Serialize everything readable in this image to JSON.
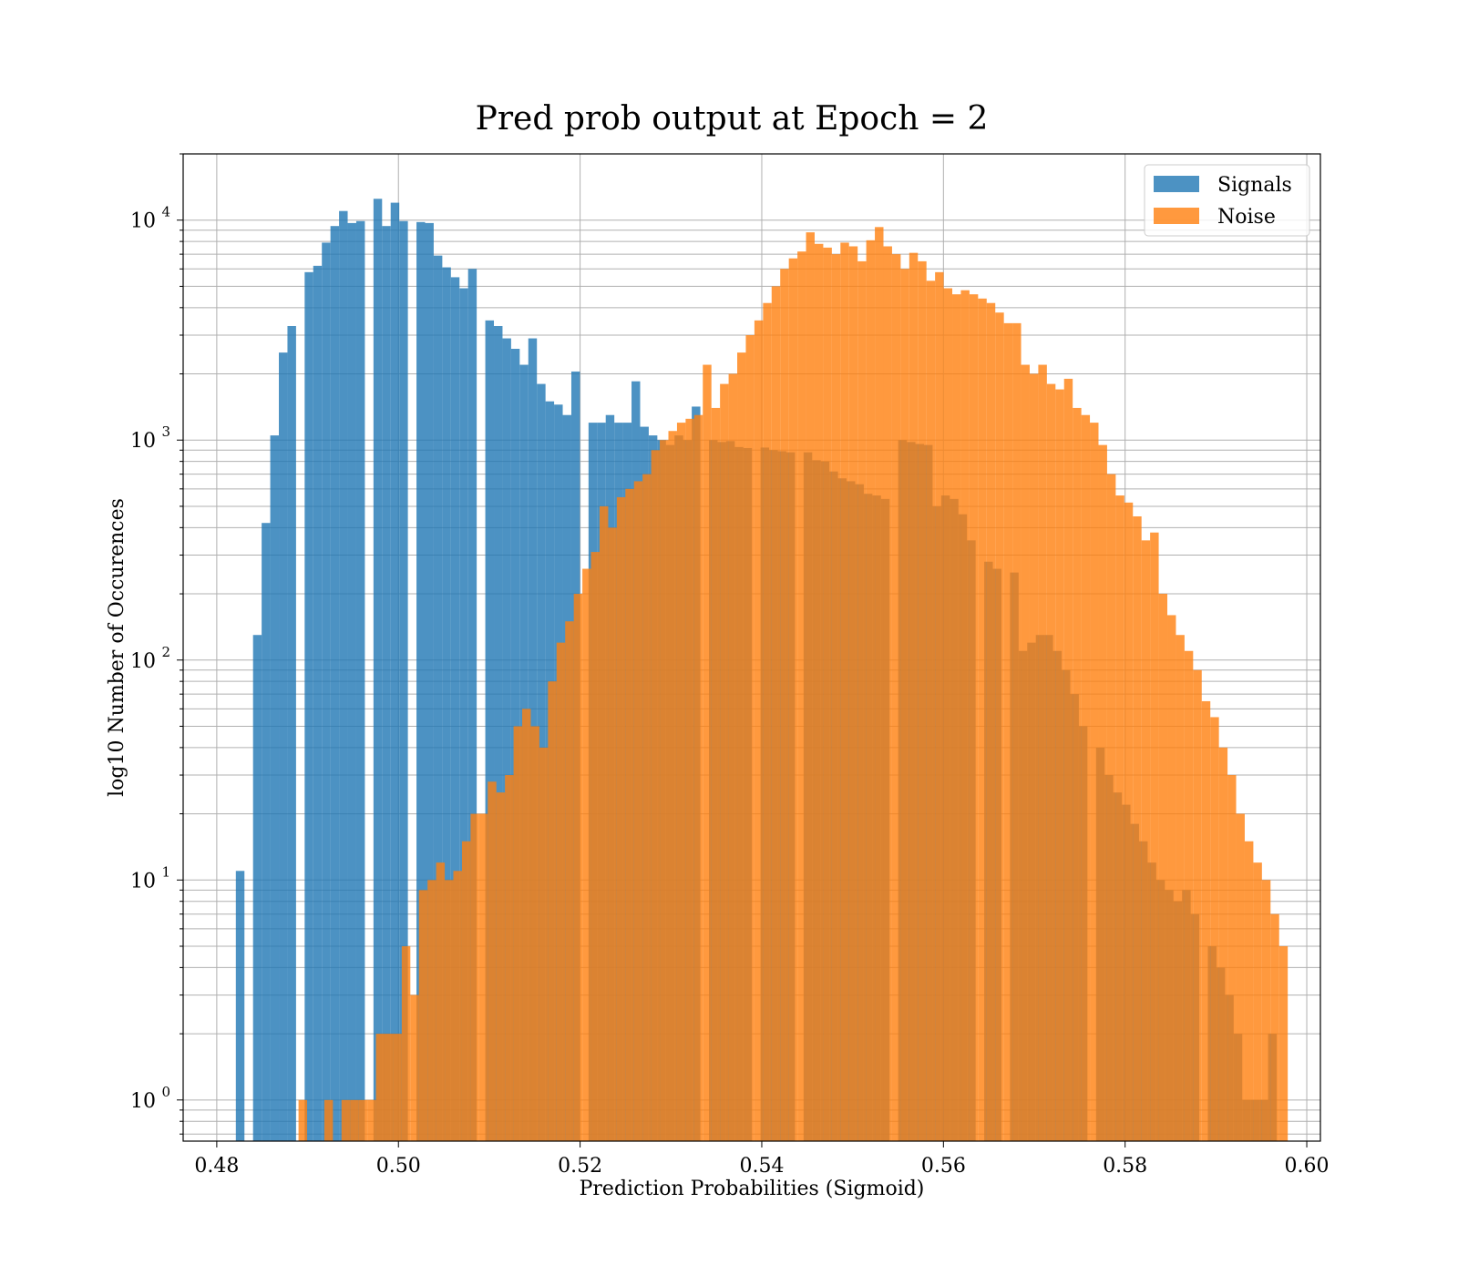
{
  "chart_data": {
    "type": "bar",
    "title": "Pred prob output at Epoch = 2",
    "xlabel": "Prediction Probabilities (Sigmoid)",
    "ylabel": "log10 Number of Occurences",
    "xlim": [
      0.4763,
      0.6015
    ],
    "ylim": [
      0.65,
      20000
    ],
    "yscale": "log",
    "grid": true,
    "legend_position": "top-right",
    "x_ticks": [
      {
        "value": 0.48,
        "label": "0.48"
      },
      {
        "value": 0.5,
        "label": "0.50"
      },
      {
        "value": 0.52,
        "label": "0.52"
      },
      {
        "value": 0.54,
        "label": "0.54"
      },
      {
        "value": 0.56,
        "label": "0.56"
      },
      {
        "value": 0.58,
        "label": "0.58"
      },
      {
        "value": 0.6,
        "label": "0.60"
      }
    ],
    "y_ticks": [
      {
        "value": 1,
        "base": "10",
        "exp": "0"
      },
      {
        "value": 10,
        "base": "10",
        "exp": "1"
      },
      {
        "value": 100,
        "base": "10",
        "exp": "2"
      },
      {
        "value": 1000,
        "base": "10",
        "exp": "3"
      },
      {
        "value": 10000,
        "base": "10",
        "exp": "4"
      }
    ],
    "bin_width": 0.000947,
    "series": [
      {
        "name": "Signals",
        "color": "#1f77b4",
        "opacity": 0.8,
        "bin_start": 0.4821,
        "counts": [
          11,
          0,
          130,
          420,
          1050,
          2500,
          3300,
          0,
          5800,
          6200,
          7900,
          9400,
          11000,
          9700,
          9900,
          0,
          12500,
          9400,
          12000,
          9900,
          0,
          9800,
          9700,
          6900,
          6100,
          5500,
          4900,
          6000,
          0,
          3500,
          3300,
          2900,
          2600,
          2200,
          2900,
          1800,
          1500,
          1450,
          1300,
          2050,
          0,
          1200,
          1200,
          1300,
          1200,
          1200,
          1850,
          1150,
          1050,
          1000,
          950,
          1050,
          1000,
          1420,
          0,
          1000,
          980,
          990,
          930,
          920,
          0,
          925,
          900,
          890,
          880,
          0,
          880,
          810,
          800,
          720,
          670,
          650,
          630,
          570,
          560,
          540,
          0,
          1000,
          980,
          960,
          950,
          500,
          560,
          540,
          460,
          350,
          0,
          280,
          260,
          0,
          250,
          110,
          120,
          130,
          130,
          110,
          90,
          70,
          50,
          0,
          40,
          30,
          25,
          22,
          18,
          15,
          12,
          10,
          9,
          8,
          9,
          7,
          0,
          5,
          4,
          3,
          2,
          1,
          1,
          1,
          2,
          0
        ]
      },
      {
        "name": "Noise",
        "color": "#ff7f0e",
        "opacity": 0.8,
        "bin_start": 0.489,
        "counts": [
          1,
          0,
          0,
          1,
          0,
          1,
          1,
          1,
          1,
          2,
          2,
          2,
          5,
          3,
          9,
          10,
          12,
          10,
          11,
          15,
          20,
          20,
          28,
          25,
          30,
          50,
          60,
          50,
          40,
          80,
          120,
          150,
          200,
          260,
          310,
          500,
          400,
          550,
          600,
          650,
          700,
          900,
          1000,
          1100,
          1200,
          1250,
          1300,
          2200,
          1400,
          1800,
          2000,
          2500,
          3000,
          3500,
          4200,
          5000,
          6000,
          6700,
          7200,
          8800,
          7800,
          7500,
          7000,
          7900,
          7600,
          6500,
          8100,
          9300,
          7600,
          7000,
          6000,
          7100,
          6500,
          5300,
          5800,
          4900,
          4600,
          4800,
          4600,
          4400,
          4200,
          3800,
          3400,
          3400,
          2200,
          2000,
          2200,
          1800,
          1700,
          1900,
          1400,
          1300,
          1200,
          950,
          700,
          560,
          520,
          450,
          350,
          380,
          200,
          160,
          130,
          110,
          90,
          65,
          55,
          40,
          30,
          20,
          15,
          12,
          10,
          7,
          5
        ]
      }
    ]
  }
}
